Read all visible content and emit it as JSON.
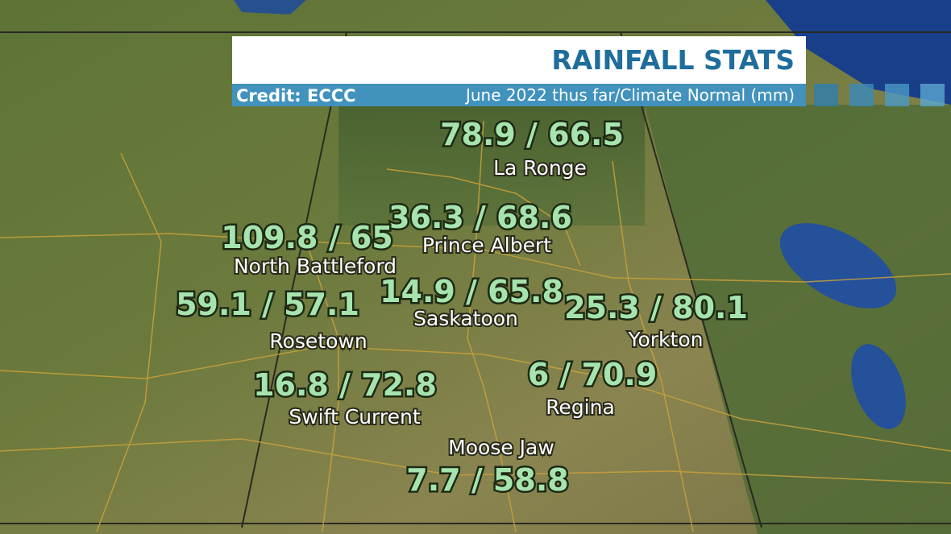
{
  "header": {
    "title": "RAINFALL STATS",
    "credit": "Credit: ECCC",
    "subtitle": "June 2022 thus far/Climate Normal (mm)"
  },
  "stations": [
    {
      "value": "78.9 / 66.5",
      "name": "La Ronge"
    },
    {
      "value": "36.3 / 68.6",
      "name": "Prince Albert"
    },
    {
      "value": "109.8 / 65",
      "name": "North Battleford"
    },
    {
      "value": "14.9 / 65.8",
      "name": "Saskatoon"
    },
    {
      "value": "59.1 / 57.1",
      "name": "Rosetown"
    },
    {
      "value": "25.3 / 80.1",
      "name": "Yorkton"
    },
    {
      "value": "16.8 / 72.8",
      "name": "Swift Current"
    },
    {
      "value": "6 / 70.9",
      "name": "Regina"
    },
    {
      "value": "7.7 / 58.8",
      "name": "Moose Jaw"
    }
  ]
}
